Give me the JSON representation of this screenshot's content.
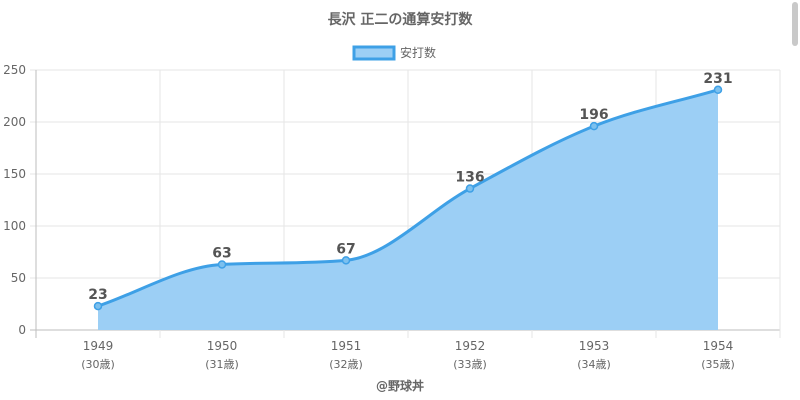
{
  "chart_data": {
    "type": "area",
    "title": "長沢 正二の通算安打数",
    "categories": [
      "1949",
      "1950",
      "1951",
      "1952",
      "1953",
      "1954"
    ],
    "sublabels": [
      "(30歳)",
      "(31歳)",
      "(32歳)",
      "(33歳)",
      "(34歳)",
      "(35歳)"
    ],
    "series": [
      {
        "name": "安打数",
        "values": [
          23,
          63,
          67,
          136,
          196,
          231
        ],
        "color": "#3ea0e6",
        "fill": "#9ccff5"
      }
    ],
    "yticks": [
      0,
      50,
      100,
      150,
      200,
      250
    ],
    "ylim": [
      0,
      250
    ],
    "grid": true,
    "legend": "top-center",
    "xlabel": "",
    "ylabel": ""
  },
  "credit": "@野球丼"
}
